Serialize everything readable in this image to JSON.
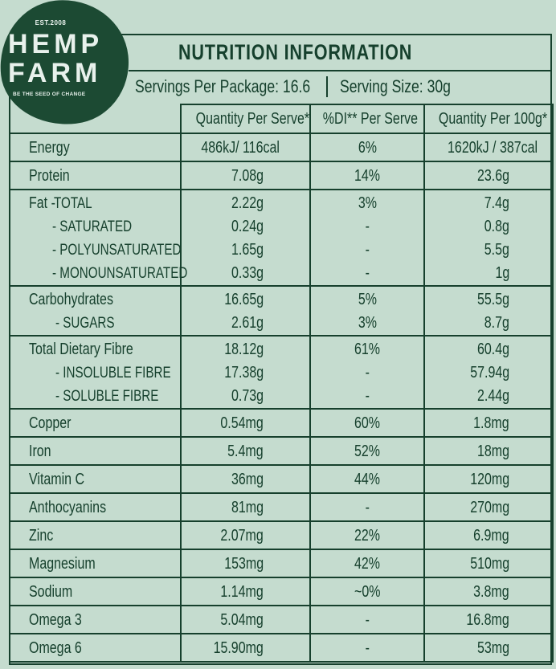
{
  "brand": {
    "est": "EST.2008",
    "name_line1": "HEMP",
    "name_line2": "FARM",
    "tagline": "BE THE SEED OF CHANGE"
  },
  "title": "NUTRITION INFORMATION",
  "servings_per_package": "Servings Per Package: 16.6",
  "serving_size": "Serving Size: 30g",
  "headers": {
    "quantity": "Quantity Per Serve*",
    "di": "%DI** Per Serve",
    "per100": "Quantity Per 100g*"
  },
  "rows": [
    {
      "lines": [
        {
          "name": "Energy",
          "quantity": "486kJ/ 116cal",
          "di": "6%",
          "per100": "1620kJ / 387cal"
        }
      ]
    },
    {
      "lines": [
        {
          "name": "Protein",
          "quantity": "7.08g",
          "di": "14%",
          "per100": "23.6g"
        }
      ]
    },
    {
      "lines": [
        {
          "name": "Fat - ",
          "sub": "TOTAL",
          "quantity": "2.22g",
          "di": "3%",
          "per100": "7.4g"
        },
        {
          "name": "- SATURATED",
          "quantity": "0.24g",
          "di": "-",
          "per100": "0.8g"
        },
        {
          "name": "- POLYUNSATURATED",
          "quantity": "1.65g",
          "di": "-",
          "per100": "5.5g"
        },
        {
          "name": "- MONOUNSATURATED",
          "quantity": "0.33g",
          "di": "-",
          "per100": "1g"
        }
      ]
    },
    {
      "lines": [
        {
          "name": "Carbohydrates",
          "quantity": "16.65g",
          "di": "5%",
          "per100": "55.5g"
        },
        {
          "name": "- SUGARS",
          "quantity": "2.61g",
          "di": "3%",
          "per100": "8.7g"
        }
      ]
    },
    {
      "lines": [
        {
          "name": "Total Dietary Fibre",
          "quantity": "18.12g",
          "di": "61%",
          "per100": "60.4g"
        },
        {
          "name": "- INSOLUBLE FIBRE",
          "quantity": "17.38g",
          "di": "-",
          "per100": "57.94g"
        },
        {
          "name": "- SOLUBLE FIBRE",
          "quantity": "0.73g",
          "di": "-",
          "per100": "2.44g"
        }
      ]
    },
    {
      "lines": [
        {
          "name": "Copper",
          "quantity": "0.54mg",
          "di": "60%",
          "per100": "1.8mg"
        }
      ]
    },
    {
      "lines": [
        {
          "name": "Iron",
          "quantity": "5.4mg",
          "di": "52%",
          "per100": "18mg"
        }
      ]
    },
    {
      "lines": [
        {
          "name": "Vitamin C",
          "quantity": "36mg",
          "di": "44%",
          "per100": "120mg"
        }
      ]
    },
    {
      "lines": [
        {
          "name": "Anthocyanins",
          "quantity": "81mg",
          "di": "-",
          "per100": "270mg"
        }
      ]
    },
    {
      "lines": [
        {
          "name": "Zinc",
          "quantity": "2.07mg",
          "di": "22%",
          "per100": "6.9mg"
        }
      ]
    },
    {
      "lines": [
        {
          "name": "Magnesium",
          "quantity": "153mg",
          "di": "42%",
          "per100": "510mg"
        }
      ]
    },
    {
      "lines": [
        {
          "name": "Sodium",
          "quantity": "1.14mg",
          "di": "~0%",
          "per100": "3.8mg"
        }
      ]
    },
    {
      "lines": [
        {
          "name": "Omega 3",
          "quantity": "5.04mg",
          "di": "-",
          "per100": "16.8mg"
        }
      ]
    },
    {
      "lines": [
        {
          "name": "Omega 6",
          "quantity": "15.90mg",
          "di": "-",
          "per100": "53mg"
        }
      ]
    }
  ]
}
